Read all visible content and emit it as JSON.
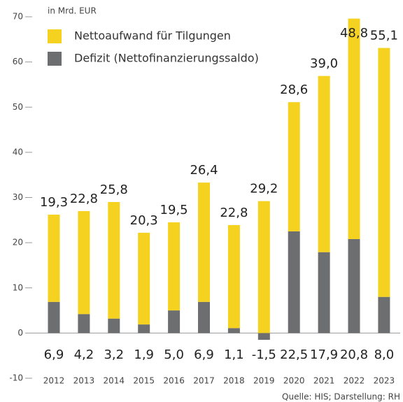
{
  "chart_data": {
    "type": "stacked-bar",
    "unit_label": "in Mrd. EUR",
    "source": "Quelle: HIS; Darstellung: RH",
    "categories": [
      "2012",
      "2013",
      "2014",
      "2015",
      "2016",
      "2017",
      "2018",
      "2019",
      "2020",
      "2021",
      "2022",
      "2023"
    ],
    "series": [
      {
        "name": "Defizit (Nettofinanzierungssaldo)",
        "color": "#6d6e70",
        "values": [
          6.9,
          4.2,
          3.2,
          1.9,
          5.0,
          6.9,
          1.1,
          -1.5,
          22.5,
          17.9,
          20.8,
          8.0
        ],
        "value_labels": [
          "6,9",
          "4,2",
          "3,2",
          "1,9",
          "5,0",
          "6,9",
          "1,1",
          "-1,5",
          "22,5",
          "17,9",
          "20,8",
          "8,0"
        ]
      },
      {
        "name": "Nettoaufwand für Tilgungen",
        "color": "#f5d21f",
        "values": [
          19.3,
          22.8,
          25.8,
          20.3,
          19.5,
          26.4,
          22.8,
          29.2,
          28.6,
          39.0,
          48.8,
          55.1
        ],
        "value_labels": [
          "19,3",
          "22,8",
          "25,8",
          "20,3",
          "19,5",
          "26,4",
          "22,8",
          "29,2",
          "28,6",
          "39,0",
          "48,8",
          "55,1"
        ]
      }
    ],
    "ylim": [
      -10,
      70
    ],
    "yticks": [
      -10,
      0,
      10,
      20,
      30,
      40,
      50,
      60,
      70
    ],
    "legend": "top-left"
  }
}
